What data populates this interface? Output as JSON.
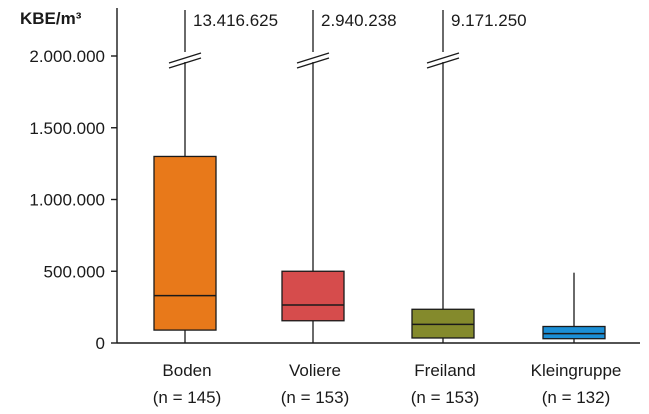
{
  "chart_data": {
    "type": "boxplot",
    "ylabel": "KBE/m³",
    "ylim": [
      0,
      2300000
    ],
    "y_ticks": [
      0,
      500000,
      1000000,
      1500000,
      2000000
    ],
    "y_tick_labels": [
      "0",
      "500.000",
      "1.000.000",
      "1.500.000",
      "2.000.000"
    ],
    "axis_break_on_whiskers": true,
    "categories": [
      {
        "name": "Boden",
        "n_label": "(n = 145)",
        "color": "#E8791A",
        "min": 0,
        "q1": 90000,
        "median": 330000,
        "q3": 1300000,
        "max": 13416625,
        "max_label": "13.416.625"
      },
      {
        "name": "Voliere",
        "n_label": "(n = 153)",
        "color": "#D64C4C",
        "min": 0,
        "q1": 155000,
        "median": 265000,
        "q3": 500000,
        "max": 2940238,
        "max_label": "2.940.238"
      },
      {
        "name": "Freiland",
        "n_label": "(n = 153)",
        "color": "#848A2C",
        "min": 0,
        "q1": 35000,
        "median": 130000,
        "q3": 235000,
        "max": 9171250,
        "max_label": "9.171.250"
      },
      {
        "name": "Kleingruppe",
        "n_label": "(n = 132)",
        "color": "#1C8FD6",
        "min": 0,
        "q1": 30000,
        "median": 65000,
        "q3": 115000,
        "max": 490000,
        "max_label": ""
      }
    ]
  }
}
